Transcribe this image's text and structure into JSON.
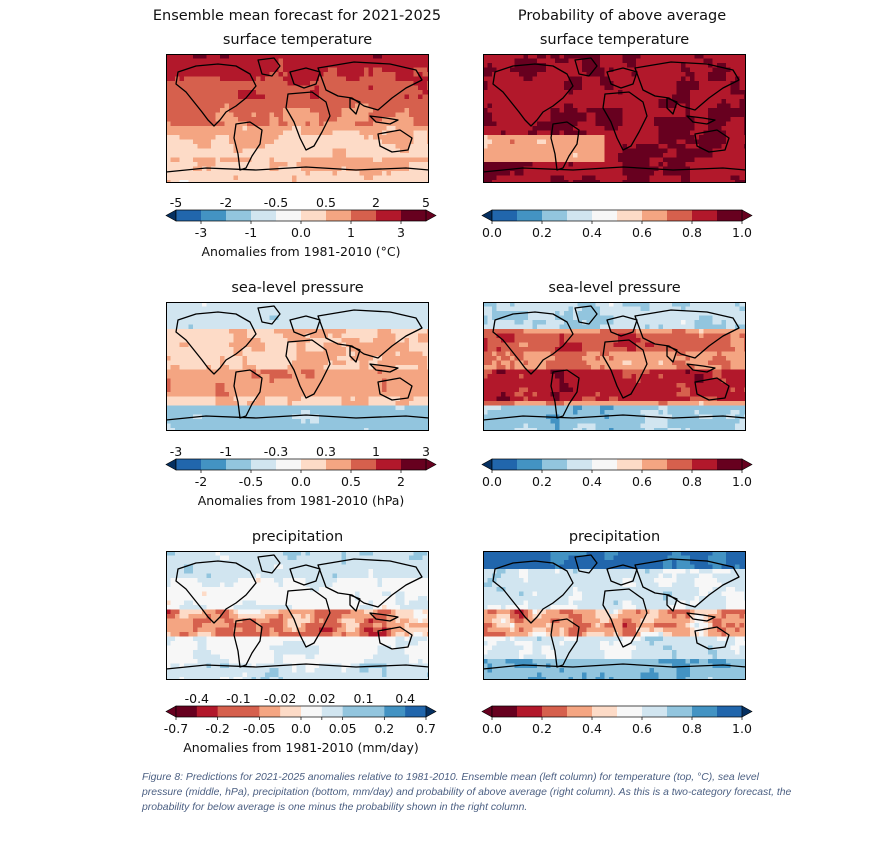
{
  "page": {
    "header_left_1": "Ensemble mean forecast for 2021-2025",
    "header_right_1": "Probability of above average",
    "caption": "Figure 8: Predictions for 2021-2025 anomalies relative to 1981-2010. Ensemble mean (left column) for temperature (top, °C), sea level pressure (middle, hPa), precipitation (bottom, mm/day) and probability of above average (right column). As this is a two-category forecast, the probability for below average is one minus the probability shown in the right column."
  },
  "palettes": {
    "rdbu": [
      "#2166ac",
      "#4393c3",
      "#92c5de",
      "#d1e5f0",
      "#f7f7f7",
      "#fddbc7",
      "#f4a582",
      "#d6604d",
      "#b2182b",
      "#67001f"
    ],
    "bu_ext": "#053061",
    "rd_ext": "#67001f"
  },
  "chart_data": [
    {
      "type": "heatmap",
      "id": "temp_mean",
      "title": "surface temperature",
      "panel": "ensemble mean",
      "colormap": "RdBu_r",
      "extend": "both",
      "levels": [
        -5,
        -3,
        -2,
        -1,
        -0.5,
        0,
        0.5,
        1,
        2,
        3,
        5
      ],
      "ticks_top": [
        "-5",
        "-2",
        "-0.5",
        "0.5",
        "2",
        "5"
      ],
      "ticks_bottom": [
        "-3",
        "-1",
        "0.0",
        "1",
        "3"
      ],
      "colorbar_label": "Anomalies from 1981-2010 (°C)",
      "pattern": "warming over most land, strongest in high northern latitudes; weak anomalies over southern oceans"
    },
    {
      "type": "heatmap",
      "id": "temp_prob",
      "title": "surface temperature",
      "panel": "probability of above average",
      "colormap": "RdBu_r",
      "extend": "both",
      "levels": [
        0.0,
        0.1,
        0.2,
        0.3,
        0.4,
        0.5,
        0.6,
        0.7,
        0.8,
        0.9,
        1.0
      ],
      "ticks_bottom": [
        "0.0",
        "0.2",
        "0.4",
        "0.6",
        "0.8",
        "1.0"
      ],
      "colorbar_label": "",
      "pattern": "very high probability (>0.8) almost everywhere"
    },
    {
      "type": "heatmap",
      "id": "slp_mean",
      "title": "sea-level pressure",
      "panel": "ensemble mean",
      "colormap": "RdBu_r",
      "extend": "both",
      "levels": [
        -3,
        -2,
        -1,
        -0.5,
        -0.3,
        0,
        0.3,
        0.5,
        1,
        2,
        3
      ],
      "ticks_top": [
        "-3",
        "-1",
        "-0.3",
        "0.3",
        "1",
        "3"
      ],
      "ticks_bottom": [
        "-2",
        "-0.5",
        "0.0",
        "0.5",
        "2"
      ],
      "colorbar_label": "Anomalies from 1981-2010 (hPa)",
      "pattern": "positive over subtropical oceans, negative near Antarctica and Arctic"
    },
    {
      "type": "heatmap",
      "id": "slp_prob",
      "title": "sea-level pressure",
      "panel": "probability of above average",
      "colormap": "RdBu_r",
      "extend": "both",
      "levels": [
        0.0,
        0.1,
        0.2,
        0.3,
        0.4,
        0.5,
        0.6,
        0.7,
        0.8,
        0.9,
        1.0
      ],
      "ticks_bottom": [
        "0.0",
        "0.2",
        "0.4",
        "0.6",
        "0.8",
        "1.0"
      ],
      "colorbar_label": "",
      "pattern": "high probability in subtropical bands, low near poles"
    },
    {
      "type": "heatmap",
      "id": "precip_mean",
      "title": "precipitation",
      "panel": "ensemble mean",
      "colormap": "RdBu",
      "extend": "both",
      "levels": [
        -0.7,
        -0.4,
        -0.2,
        -0.1,
        -0.05,
        -0.02,
        0.0,
        0.02,
        0.05,
        0.1,
        0.2,
        0.4,
        0.7
      ],
      "ticks_top": [
        "-0.4",
        "-0.1",
        "-0.02",
        "0.02",
        "0.1",
        "0.4"
      ],
      "ticks_bottom": [
        "-0.7",
        "-0.2",
        "-0.05",
        "0.0",
        "0.05",
        "0.2",
        "0.7"
      ],
      "colorbar_label": "Anomalies from 1981-2010 (mm/day)",
      "pattern": "drying in tropical band south of equator, wetter high latitudes"
    },
    {
      "type": "heatmap",
      "id": "precip_prob",
      "title": "precipitation",
      "panel": "probability of above average",
      "colormap": "RdBu",
      "extend": "both",
      "levels": [
        0.0,
        0.1,
        0.2,
        0.3,
        0.4,
        0.5,
        0.6,
        0.7,
        0.8,
        0.9,
        1.0
      ],
      "ticks_bottom": [
        "0.0",
        "0.2",
        "0.4",
        "0.6",
        "0.8",
        "1.0"
      ],
      "colorbar_label": "",
      "pattern": "high probability of wetter conditions at high latitudes, low in southern tropics"
    }
  ]
}
